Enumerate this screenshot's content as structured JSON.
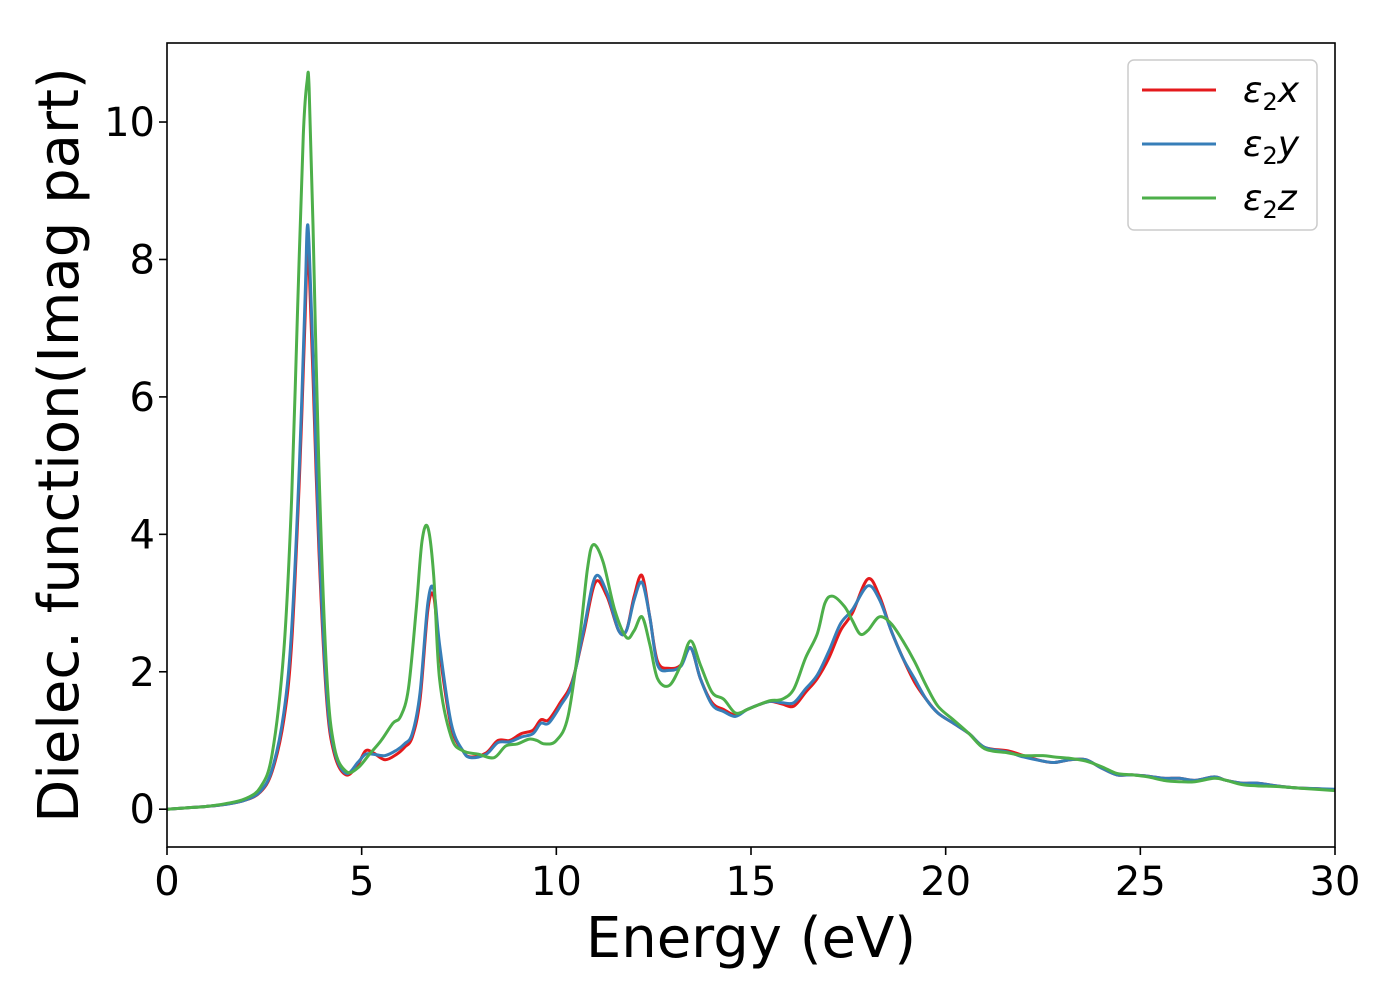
{
  "chart_data": {
    "type": "line",
    "title": "",
    "xlabel": "Energy (eV)",
    "ylabel": "Dielec. function(Imag part)",
    "xlim": [
      0,
      30
    ],
    "ylim": [
      -0.55,
      11.15
    ],
    "xticks": [
      0,
      5,
      10,
      15,
      20,
      25,
      30
    ],
    "yticks": [
      0,
      2,
      4,
      6,
      8,
      10
    ],
    "grid": false,
    "legend_position": "top-right",
    "series": [
      {
        "name": "ε2x",
        "legend_base": "ε",
        "legend_sub": "2",
        "legend_tail": "x",
        "color": "#e41a1c",
        "x": [
          0,
          0.5,
          1,
          1.5,
          2,
          2.4,
          2.7,
          3.0,
          3.2,
          3.4,
          3.55,
          3.6,
          3.65,
          3.75,
          3.9,
          4.1,
          4.3,
          4.6,
          4.9,
          5.1,
          5.3,
          5.6,
          5.9,
          6.1,
          6.3,
          6.5,
          6.7,
          6.85,
          7.0,
          7.3,
          7.6,
          7.8,
          8.2,
          8.5,
          8.8,
          9.1,
          9.4,
          9.6,
          9.8,
          10.1,
          10.4,
          10.7,
          11.0,
          11.3,
          11.6,
          11.8,
          12.0,
          12.2,
          12.4,
          12.6,
          12.9,
          13.2,
          13.45,
          13.7,
          14.0,
          14.3,
          14.6,
          14.9,
          15.2,
          15.5,
          15.8,
          16.1,
          16.4,
          16.7,
          17.0,
          17.3,
          17.6,
          18.0,
          18.3,
          18.6,
          18.9,
          19.2,
          19.5,
          19.8,
          20.2,
          20.6,
          21.0,
          21.6,
          22.0,
          22.5,
          22.8,
          23.2,
          23.6,
          24.0,
          24.4,
          24.8,
          25.2,
          25.6,
          26.0,
          26.4,
          26.9,
          27.2,
          27.6,
          28.0,
          28.5,
          29.0,
          29.5,
          30.0
        ],
        "values": [
          0,
          0.02,
          0.04,
          0.07,
          0.13,
          0.25,
          0.55,
          1.3,
          2.4,
          4.8,
          7.2,
          8.1,
          7.9,
          6.3,
          3.8,
          1.6,
          0.8,
          0.5,
          0.65,
          0.85,
          0.82,
          0.72,
          0.8,
          0.9,
          1.05,
          1.6,
          2.9,
          3.1,
          2.3,
          1.2,
          0.85,
          0.76,
          0.82,
          1.0,
          1.0,
          1.1,
          1.15,
          1.3,
          1.3,
          1.55,
          1.85,
          2.55,
          3.3,
          3.1,
          2.6,
          2.6,
          3.1,
          3.4,
          2.8,
          2.15,
          2.05,
          2.1,
          2.35,
          1.9,
          1.55,
          1.45,
          1.37,
          1.45,
          1.52,
          1.57,
          1.53,
          1.5,
          1.7,
          1.9,
          2.2,
          2.6,
          2.85,
          3.35,
          3.1,
          2.6,
          2.2,
          1.85,
          1.6,
          1.4,
          1.25,
          1.1,
          0.9,
          0.85,
          0.78,
          0.7,
          0.68,
          0.72,
          0.72,
          0.6,
          0.5,
          0.5,
          0.48,
          0.45,
          0.45,
          0.42,
          0.47,
          0.42,
          0.38,
          0.38,
          0.34,
          0.31,
          0.3,
          0.28
        ]
      },
      {
        "name": "ε2y",
        "legend_base": "ε",
        "legend_sub": "2",
        "legend_tail": "y",
        "color": "#377eb8",
        "x": [
          0,
          0.5,
          1,
          1.5,
          2,
          2.4,
          2.7,
          3.0,
          3.2,
          3.4,
          3.55,
          3.6,
          3.65,
          3.75,
          3.9,
          4.1,
          4.3,
          4.6,
          4.9,
          5.1,
          5.3,
          5.6,
          5.9,
          6.1,
          6.3,
          6.5,
          6.7,
          6.85,
          7.0,
          7.3,
          7.6,
          7.8,
          8.2,
          8.5,
          8.8,
          9.1,
          9.4,
          9.6,
          9.8,
          10.1,
          10.4,
          10.7,
          11.0,
          11.3,
          11.6,
          11.8,
          12.0,
          12.2,
          12.4,
          12.6,
          12.9,
          13.2,
          13.45,
          13.7,
          14.0,
          14.3,
          14.6,
          14.9,
          15.2,
          15.5,
          15.8,
          16.1,
          16.4,
          16.7,
          17.0,
          17.3,
          17.6,
          18.0,
          18.3,
          18.6,
          18.9,
          19.2,
          19.5,
          19.8,
          20.2,
          20.6,
          21.0,
          21.6,
          22.0,
          22.5,
          22.8,
          23.2,
          23.6,
          24.0,
          24.4,
          24.8,
          25.2,
          25.6,
          26.0,
          26.4,
          26.9,
          27.2,
          27.6,
          28.0,
          28.5,
          29.0,
          29.5,
          30.0
        ],
        "values": [
          0,
          0.02,
          0.04,
          0.07,
          0.13,
          0.26,
          0.58,
          1.4,
          2.6,
          5.0,
          7.5,
          8.45,
          8.2,
          6.6,
          4.0,
          1.7,
          0.85,
          0.52,
          0.68,
          0.8,
          0.8,
          0.78,
          0.86,
          0.95,
          1.1,
          1.7,
          3.0,
          3.2,
          2.4,
          1.25,
          0.85,
          0.75,
          0.8,
          0.97,
          0.98,
          1.05,
          1.1,
          1.25,
          1.25,
          1.5,
          1.82,
          2.6,
          3.38,
          3.15,
          2.6,
          2.6,
          3.05,
          3.3,
          2.8,
          2.1,
          2.02,
          2.08,
          2.35,
          1.9,
          1.52,
          1.42,
          1.35,
          1.45,
          1.52,
          1.57,
          1.55,
          1.55,
          1.75,
          1.95,
          2.3,
          2.7,
          2.9,
          3.25,
          3.05,
          2.6,
          2.2,
          1.9,
          1.6,
          1.4,
          1.25,
          1.1,
          0.9,
          0.83,
          0.76,
          0.7,
          0.68,
          0.72,
          0.72,
          0.6,
          0.5,
          0.5,
          0.48,
          0.45,
          0.45,
          0.42,
          0.47,
          0.42,
          0.38,
          0.38,
          0.34,
          0.31,
          0.3,
          0.29
        ]
      },
      {
        "name": "ε2z",
        "legend_base": "ε",
        "legend_sub": "2",
        "legend_tail": "z",
        "color": "#4daf4a",
        "x": [
          0,
          0.5,
          1,
          1.5,
          2,
          2.4,
          2.7,
          3.0,
          3.2,
          3.35,
          3.5,
          3.6,
          3.65,
          3.75,
          3.9,
          4.1,
          4.3,
          4.6,
          4.9,
          5.2,
          5.5,
          5.8,
          6.0,
          6.2,
          6.4,
          6.55,
          6.7,
          6.85,
          7.0,
          7.3,
          7.6,
          8.0,
          8.4,
          8.7,
          9.0,
          9.3,
          9.5,
          9.7,
          10.0,
          10.3,
          10.6,
          10.8,
          10.95,
          11.2,
          11.5,
          11.8,
          12.0,
          12.2,
          12.4,
          12.6,
          12.9,
          13.2,
          13.45,
          13.7,
          14.0,
          14.3,
          14.6,
          14.9,
          15.2,
          15.5,
          15.8,
          16.1,
          16.4,
          16.7,
          16.9,
          17.1,
          17.4,
          17.6,
          17.8,
          18.0,
          18.3,
          18.6,
          18.9,
          19.2,
          19.5,
          19.8,
          20.2,
          20.6,
          21.0,
          21.6,
          22.0,
          22.5,
          22.8,
          23.2,
          23.6,
          24.0,
          24.4,
          24.8,
          25.2,
          25.6,
          26.0,
          26.4,
          26.9,
          27.2,
          27.6,
          28.0,
          28.5,
          29.0,
          29.5,
          30.0
        ],
        "values": [
          0,
          0.02,
          0.04,
          0.08,
          0.15,
          0.32,
          0.8,
          2.3,
          4.5,
          7.2,
          9.8,
          10.6,
          10.5,
          8.5,
          5.0,
          2.0,
          0.9,
          0.55,
          0.6,
          0.8,
          1.0,
          1.25,
          1.35,
          1.75,
          2.9,
          3.9,
          4.1,
          3.4,
          1.9,
          1.05,
          0.85,
          0.8,
          0.75,
          0.92,
          0.95,
          1.02,
          1.0,
          0.95,
          1.0,
          1.35,
          2.5,
          3.5,
          3.85,
          3.6,
          2.9,
          2.5,
          2.6,
          2.8,
          2.4,
          1.9,
          1.8,
          2.1,
          2.45,
          2.1,
          1.7,
          1.6,
          1.4,
          1.45,
          1.52,
          1.58,
          1.6,
          1.75,
          2.2,
          2.55,
          3.0,
          3.1,
          2.95,
          2.75,
          2.55,
          2.6,
          2.8,
          2.7,
          2.45,
          2.15,
          1.8,
          1.5,
          1.3,
          1.1,
          0.88,
          0.82,
          0.78,
          0.78,
          0.76,
          0.74,
          0.7,
          0.62,
          0.52,
          0.5,
          0.47,
          0.42,
          0.4,
          0.4,
          0.45,
          0.42,
          0.36,
          0.34,
          0.33,
          0.31,
          0.29,
          0.27
        ]
      }
    ]
  }
}
